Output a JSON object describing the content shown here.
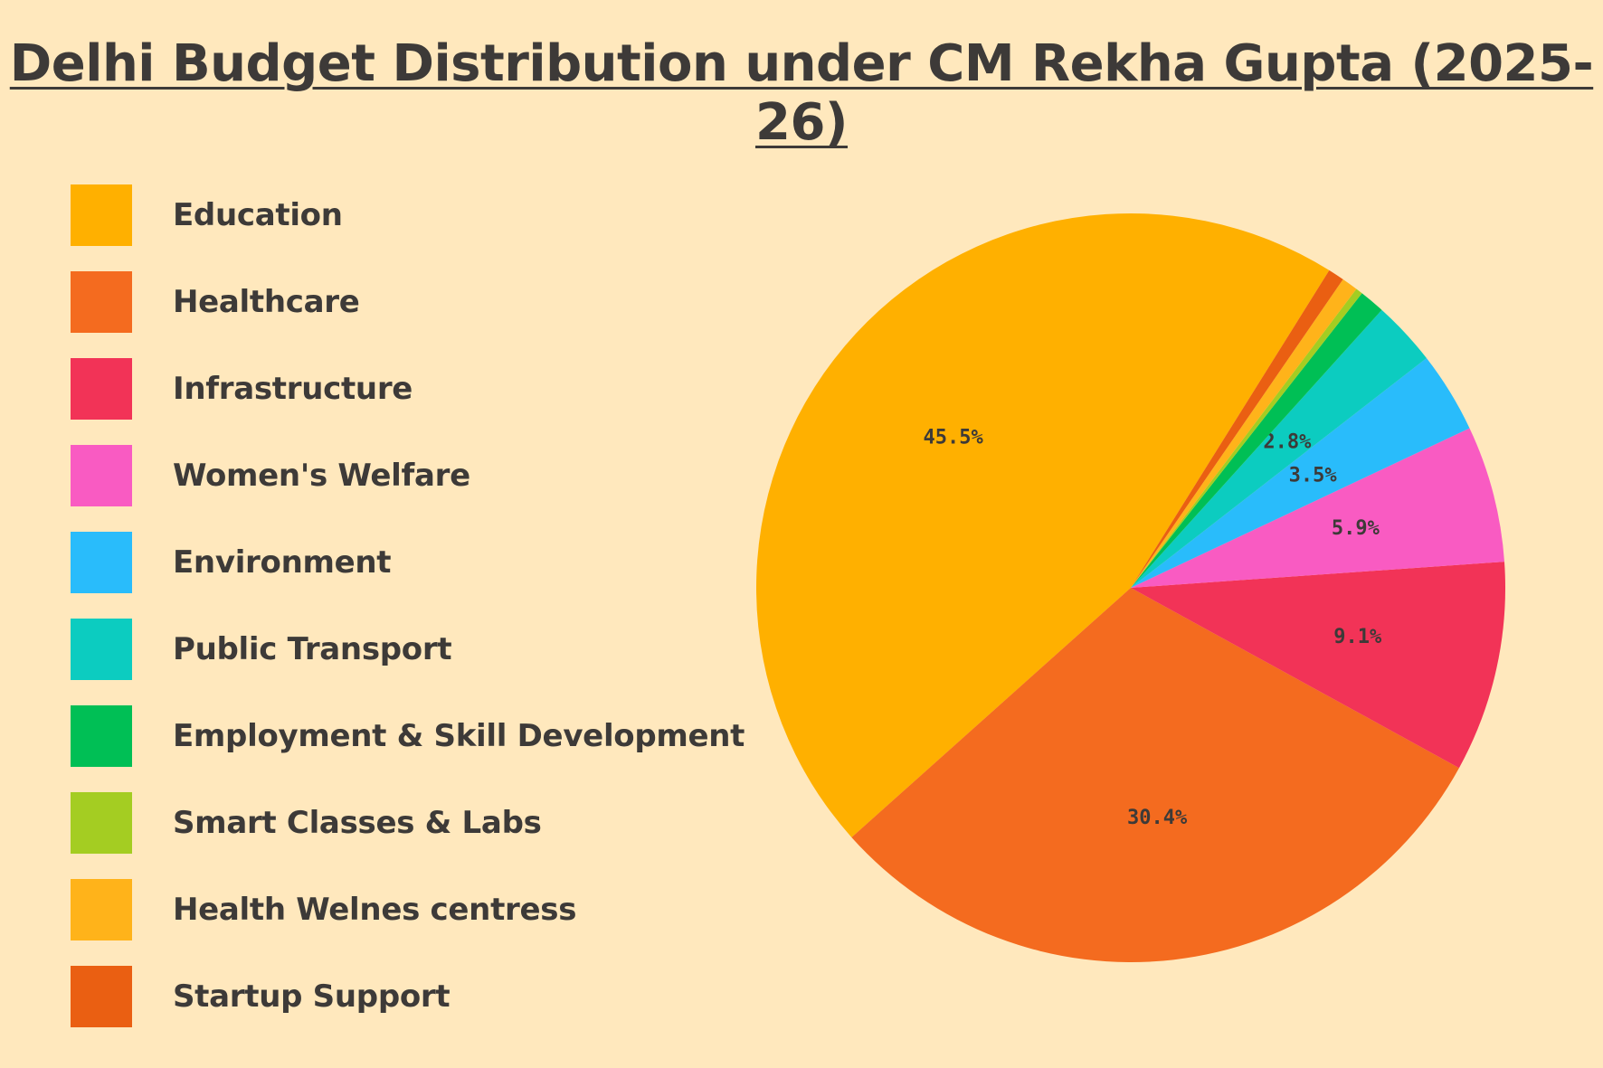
{
  "title": "Delhi Budget Distribution under CM Rekha Gupta (2025-26)",
  "colors": {
    "background": "#ffe8bd",
    "text": "#3d3a38"
  },
  "chart_data": {
    "type": "pie",
    "title": "Delhi Budget Distribution under CM Rekha Gupta (2025-26)",
    "legend_position": "left",
    "start_angle_deg": 302,
    "slices": [
      {
        "label": "Education",
        "value": 45.5,
        "display": "45.5%",
        "color": "#ffb000"
      },
      {
        "label": "Healthcare",
        "value": 30.4,
        "display": "30.4%",
        "color": "#f46b1f"
      },
      {
        "label": "Infrastructure",
        "value": 9.1,
        "display": "9.1%",
        "color": "#f23357"
      },
      {
        "label": "Women's Welfare",
        "value": 5.9,
        "display": "5.9%",
        "color": "#f95bc2"
      },
      {
        "label": "Environment",
        "value": 3.5,
        "display": "3.5%",
        "color": "#29bcfb"
      },
      {
        "label": "Public Transport",
        "value": 2.8,
        "display": "2.8%",
        "color": "#0cccc0"
      },
      {
        "label": "Employment & Skill Development",
        "value": 1.1,
        "display": "",
        "color": "#00bf55"
      },
      {
        "label": "Smart Classes & Labs",
        "value": 0.3,
        "display": "",
        "color": "#a4cd22"
      },
      {
        "label": "Health Welnes centress",
        "value": 0.7,
        "display": "",
        "color": "#ffb31a"
      },
      {
        "label": "Startup Support",
        "value": 0.7,
        "display": "",
        "color": "#ea5f12"
      }
    ]
  }
}
